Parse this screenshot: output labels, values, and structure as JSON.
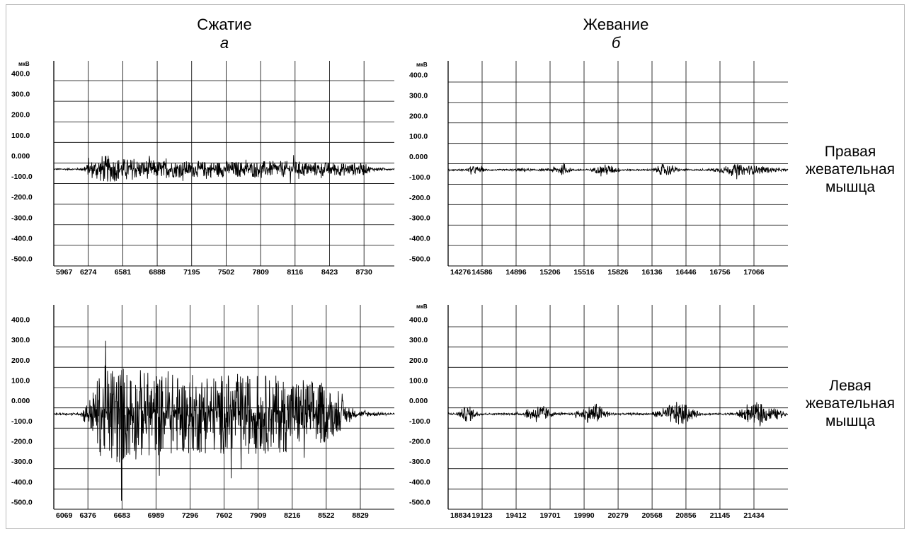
{
  "titles": {
    "left": {
      "name": "Сжатие",
      "letter": "а"
    },
    "right": {
      "name": "Жевание",
      "letter": "б"
    }
  },
  "row_labels": {
    "top": [
      "Правая",
      "жевательная",
      "мышца"
    ],
    "bottom": [
      "Левая",
      "жевательная",
      "мышца"
    ]
  },
  "chart_data": [
    {
      "type": "line",
      "title": "Сжатие",
      "subtitle": "а",
      "row": "Правая жевательная мышца",
      "ylabel": "мкВ",
      "ylim": [
        -500,
        400
      ],
      "yticks": [
        "400.0",
        "300.0",
        "200.0",
        "100.0",
        "0.000",
        "-100.0",
        "-200.0",
        "-300.0",
        "-400.0",
        "-500.0"
      ],
      "xticks": [
        "5967",
        "6274",
        "6581",
        "6888",
        "7195",
        "7502",
        "7809",
        "8116",
        "8423",
        "8730"
      ],
      "xlim": [
        5967,
        9000
      ],
      "grid": true,
      "baseline": -30,
      "series": [
        {
          "values": [
            {
              "x": 5967,
              "amp": 3
            },
            {
              "x": 6200,
              "amp": 5
            },
            {
              "x": 6250,
              "amp": 20
            },
            {
              "x": 6300,
              "amp": 45
            },
            {
              "x": 6400,
              "amp": 70
            },
            {
              "x": 6480,
              "amp": 65
            },
            {
              "x": 6581,
              "amp": 55
            },
            {
              "x": 6888,
              "amp": 45
            },
            {
              "x": 7195,
              "amp": 40
            },
            {
              "x": 7502,
              "amp": 40
            },
            {
              "x": 7809,
              "amp": 40
            },
            {
              "x": 8116,
              "amp": 40
            },
            {
              "x": 8423,
              "amp": 35
            },
            {
              "x": 8730,
              "amp": 30
            },
            {
              "x": 8800,
              "amp": 10
            },
            {
              "x": 9000,
              "amp": 3
            }
          ]
        }
      ]
    },
    {
      "type": "line",
      "title": "Жевание",
      "subtitle": "б",
      "row": "Правая жевательная мышца",
      "ylabel": "мкВ",
      "ylim": [
        -500,
        400
      ],
      "yticks": [
        "400.0",
        "300.0",
        "200.0",
        "100.0",
        "0.000",
        "-100.0",
        "-200.0",
        "-300.0",
        "-400.0",
        "-500.0"
      ],
      "xticks": [
        "14276",
        "14586",
        "14896",
        "15206",
        "15516",
        "15826",
        "16136",
        "16446",
        "16756",
        "17066"
      ],
      "xlim": [
        14276,
        17376
      ],
      "grid": true,
      "baseline": -30,
      "series": [
        {
          "values": [
            {
              "x": 14276,
              "amp": 3
            },
            {
              "x": 14420,
              "amp": 4
            },
            {
              "x": 14520,
              "amp": 22
            },
            {
              "x": 14620,
              "amp": 5
            },
            {
              "x": 14700,
              "amp": 3
            },
            {
              "x": 14860,
              "amp": 4
            },
            {
              "x": 14960,
              "amp": 10
            },
            {
              "x": 15050,
              "amp": 4
            },
            {
              "x": 15180,
              "amp": 5
            },
            {
              "x": 15300,
              "amp": 28
            },
            {
              "x": 15420,
              "amp": 5
            },
            {
              "x": 15560,
              "amp": 4
            },
            {
              "x": 15720,
              "amp": 30
            },
            {
              "x": 15860,
              "amp": 5
            },
            {
              "x": 16000,
              "amp": 3
            },
            {
              "x": 16130,
              "amp": 5
            },
            {
              "x": 16260,
              "amp": 35
            },
            {
              "x": 16400,
              "amp": 5
            },
            {
              "x": 16520,
              "amp": 3
            },
            {
              "x": 16640,
              "amp": 4
            },
            {
              "x": 16900,
              "amp": 28
            },
            {
              "x": 17120,
              "amp": 20
            },
            {
              "x": 17376,
              "amp": 3
            }
          ]
        }
      ]
    },
    {
      "type": "line",
      "title": "Сжатие",
      "subtitle": "а",
      "row": "Левая жевательная мышца",
      "ylabel": "",
      "ylim": [
        -500,
        400
      ],
      "yticks": [
        "400.0",
        "300.0",
        "200.0",
        "100.0",
        "0.000",
        "-100.0",
        "-200.0",
        "-300.0",
        "-400.0",
        "-500.0"
      ],
      "xticks": [
        "6069",
        "6376",
        "6683",
        "6989",
        "7296",
        "7602",
        "7909",
        "8216",
        "8522",
        "8829"
      ],
      "xlim": [
        6069,
        9135
      ],
      "grid": true,
      "baseline": -30,
      "series": [
        {
          "values": [
            {
              "x": 6069,
              "amp": 4
            },
            {
              "x": 6300,
              "amp": 6
            },
            {
              "x": 6400,
              "amp": 90
            },
            {
              "x": 6500,
              "amp": 230
            },
            {
              "x": 6620,
              "amp": 270
            },
            {
              "x": 6800,
              "amp": 230
            },
            {
              "x": 7000,
              "amp": 210
            },
            {
              "x": 7300,
              "amp": 200
            },
            {
              "x": 7600,
              "amp": 200
            },
            {
              "x": 7909,
              "amp": 200
            },
            {
              "x": 8216,
              "amp": 190
            },
            {
              "x": 8450,
              "amp": 170
            },
            {
              "x": 8600,
              "amp": 110
            },
            {
              "x": 8760,
              "amp": 20
            },
            {
              "x": 9135,
              "amp": 4
            }
          ]
        }
      ]
    },
    {
      "type": "line",
      "title": "Жевание",
      "subtitle": "б",
      "row": "Левая жевательная мышца",
      "ylabel": "мкВ",
      "ylim": [
        -500,
        400
      ],
      "yticks": [
        "400.0",
        "300.0",
        "200.0",
        "100.0",
        "0.000",
        "-100.0",
        "-200.0",
        "-300.0",
        "-400.0",
        "-500.0"
      ],
      "xticks": [
        "18834",
        "19123",
        "19412",
        "19701",
        "19990",
        "20279",
        "20568",
        "20856",
        "21145",
        "21434"
      ],
      "xlim": [
        18834,
        21723
      ],
      "grid": true,
      "baseline": -30,
      "series": [
        {
          "values": [
            {
              "x": 18834,
              "amp": 4
            },
            {
              "x": 18900,
              "amp": 6
            },
            {
              "x": 19000,
              "amp": 45
            },
            {
              "x": 19110,
              "amp": 6
            },
            {
              "x": 19250,
              "amp": 4
            },
            {
              "x": 19460,
              "amp": 6
            },
            {
              "x": 19610,
              "amp": 55
            },
            {
              "x": 19740,
              "amp": 6
            },
            {
              "x": 19850,
              "amp": 4
            },
            {
              "x": 19900,
              "amp": 6
            },
            {
              "x": 20080,
              "amp": 60
            },
            {
              "x": 20220,
              "amp": 6
            },
            {
              "x": 20350,
              "amp": 4
            },
            {
              "x": 20560,
              "amp": 6
            },
            {
              "x": 20800,
              "amp": 65
            },
            {
              "x": 20980,
              "amp": 6
            },
            {
              "x": 21120,
              "amp": 4
            },
            {
              "x": 21250,
              "amp": 6
            },
            {
              "x": 21480,
              "amp": 55
            },
            {
              "x": 21650,
              "amp": 20
            },
            {
              "x": 21723,
              "amp": 4
            }
          ]
        }
      ]
    }
  ]
}
